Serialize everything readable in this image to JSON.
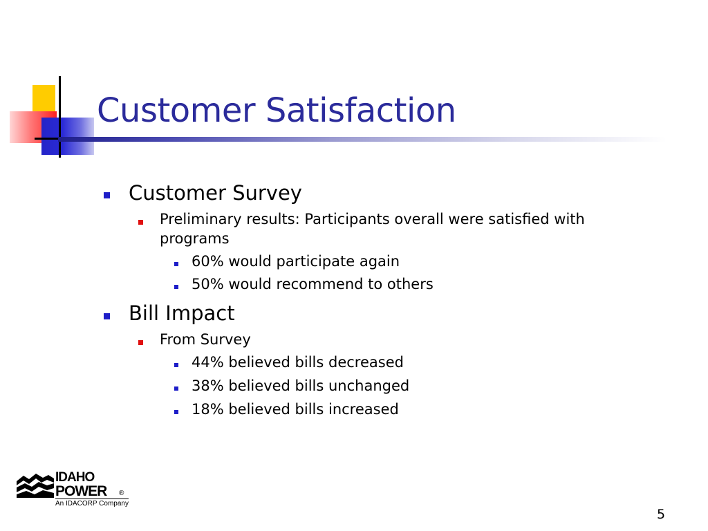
{
  "slide": {
    "title": "Customer Satisfaction",
    "page_number": "5"
  },
  "bullets": [
    {
      "level": 1,
      "text": "Customer Survey"
    },
    {
      "level": 2,
      "text": "Preliminary results: Participants overall were satisfied with"
    },
    {
      "level": 2,
      "text": "programs",
      "continuation": true
    },
    {
      "level": 3,
      "text": "60% would participate again"
    },
    {
      "level": 3,
      "text": "50% would recommend to others"
    },
    {
      "level": 1,
      "text": "Bill Impact"
    },
    {
      "level": 2,
      "text": "From Survey"
    },
    {
      "level": 3,
      "text": "44% believed bills decreased"
    },
    {
      "level": 3,
      "text": "38% believed bills unchanged"
    },
    {
      "level": 3,
      "text": "18% believed bills increased"
    }
  ],
  "logo": {
    "line1": "IDAHO",
    "line2": "POWER",
    "registered": "®",
    "tagline": "An IDACORP Company"
  },
  "colors": {
    "title": "#2b2b9b",
    "bullet_level1": "#1e1ec8",
    "bullet_level2": "#e01010",
    "bullet_level3": "#1e1ec8"
  }
}
